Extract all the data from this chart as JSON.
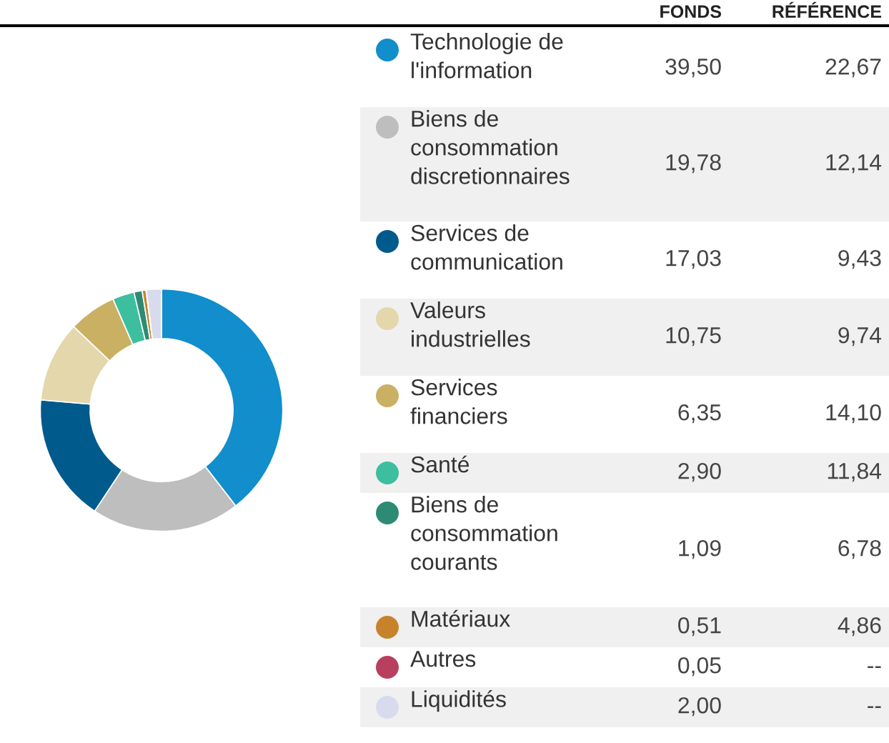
{
  "chart_data": {
    "type": "donut",
    "categories": [
      "Technologie de l'information",
      "Biens de consommation discretionnaires",
      "Services de communication",
      "Valeurs industrielles",
      "Services financiers",
      "Santé",
      "Biens de consommation courants",
      "Matériaux",
      "Autres",
      "Liquidités"
    ],
    "colors": [
      "#118ecb",
      "#bebebe",
      "#005a8c",
      "#e3d7ab",
      "#c9b063",
      "#3dbf9f",
      "#2e8b73",
      "#c7832b",
      "#b8405e",
      "#d8dbee"
    ],
    "values": [
      39.5,
      19.78,
      17.03,
      10.75,
      6.35,
      2.9,
      1.09,
      0.51,
      0.05,
      2.0
    ],
    "value_labels": [
      "39,50",
      "19,78",
      "17,03",
      "10,75",
      "6,35",
      "2,90",
      "1,09",
      "0,51",
      "0,05",
      "2,00"
    ],
    "annotations": [
      "FONDS",
      "RÉFÉRENCE",
      "22,67",
      "12,14",
      "9,43",
      "9,74",
      "14,10",
      "11,84",
      "6,78",
      "4,86",
      "--",
      "--"
    ],
    "legend": "right"
  }
}
